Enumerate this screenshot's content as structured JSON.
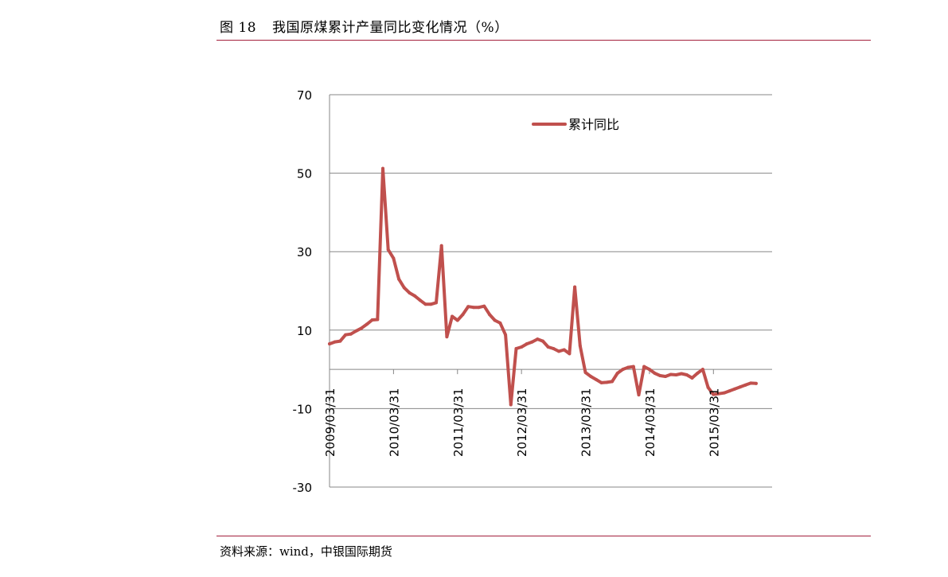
{
  "figure": {
    "label": "图 18",
    "title": "我国原煤累计产量同比变化情况（%）",
    "source": "资料来源：wind，中银国际期货"
  },
  "colors": {
    "accent_rule": "#a31f3c",
    "series_line": "#c0504d",
    "grid": "#878787"
  },
  "chart_data": {
    "type": "line",
    "title": "",
    "xlabel": "",
    "ylabel": "",
    "ylim": [
      -30,
      70
    ],
    "yticks": [
      70,
      50,
      30,
      10,
      -10,
      -30
    ],
    "grid": true,
    "legend_position": "top-right",
    "x_tick_labels": [
      "2009/03/31",
      "2010/03/31",
      "2011/03/31",
      "2012/03/31",
      "2013/03/31",
      "2014/03/31",
      "2015/03/31"
    ],
    "x_start": "2009-03",
    "x_end": "2016-02",
    "series": [
      {
        "name": "累计同比",
        "points": [
          [
            "2009-03",
            6.5
          ],
          [
            "2009-04",
            7.0
          ],
          [
            "2009-05",
            7.2
          ],
          [
            "2009-06",
            8.8
          ],
          [
            "2009-07",
            9.0
          ],
          [
            "2009-08",
            9.8
          ],
          [
            "2009-09",
            10.5
          ],
          [
            "2009-10",
            11.5
          ],
          [
            "2009-11",
            12.6
          ],
          [
            "2009-12",
            12.7
          ],
          [
            "2010-01",
            51.2
          ],
          [
            "2010-02",
            30.5
          ],
          [
            "2010-03",
            28.3
          ],
          [
            "2010-04",
            23.0
          ],
          [
            "2010-05",
            20.8
          ],
          [
            "2010-06",
            19.5
          ],
          [
            "2010-07",
            18.7
          ],
          [
            "2010-08",
            17.6
          ],
          [
            "2010-09",
            16.6
          ],
          [
            "2010-10",
            16.6
          ],
          [
            "2010-11",
            17.0
          ],
          [
            "2010-12",
            31.5
          ],
          [
            "2011-01",
            8.3
          ],
          [
            "2011-02",
            13.5
          ],
          [
            "2011-03",
            12.5
          ],
          [
            "2011-04",
            14.0
          ],
          [
            "2011-05",
            16.0
          ],
          [
            "2011-06",
            15.8
          ],
          [
            "2011-07",
            15.8
          ],
          [
            "2011-08",
            16.1
          ],
          [
            "2011-09",
            14.0
          ],
          [
            "2011-10",
            12.5
          ],
          [
            "2011-11",
            11.8
          ],
          [
            "2011-12",
            8.8
          ],
          [
            "2012-01",
            -9.0
          ],
          [
            "2012-02",
            5.3
          ],
          [
            "2012-03",
            5.7
          ],
          [
            "2012-04",
            6.5
          ],
          [
            "2012-05",
            7.0
          ],
          [
            "2012-06",
            7.7
          ],
          [
            "2012-07",
            7.2
          ],
          [
            "2012-08",
            5.7
          ],
          [
            "2012-09",
            5.3
          ],
          [
            "2012-10",
            4.6
          ],
          [
            "2012-11",
            5.0
          ],
          [
            "2012-12",
            4.0
          ],
          [
            "2013-01",
            21.0
          ],
          [
            "2013-02",
            6.0
          ],
          [
            "2013-03",
            -0.8
          ],
          [
            "2013-04",
            -1.8
          ],
          [
            "2013-05",
            -2.6
          ],
          [
            "2013-06",
            -3.4
          ],
          [
            "2013-07",
            -3.3
          ],
          [
            "2013-08",
            -3.1
          ],
          [
            "2013-09",
            -1.0
          ],
          [
            "2013-10",
            0.0
          ],
          [
            "2013-11",
            0.5
          ],
          [
            "2013-12",
            0.7
          ],
          [
            "2014-01",
            -6.5
          ],
          [
            "2014-02",
            0.7
          ],
          [
            "2014-03",
            0.0
          ],
          [
            "2014-04",
            -1.0
          ],
          [
            "2014-05",
            -1.6
          ],
          [
            "2014-06",
            -1.8
          ],
          [
            "2014-07",
            -1.3
          ],
          [
            "2014-08",
            -1.4
          ],
          [
            "2014-09",
            -1.1
          ],
          [
            "2014-10",
            -1.4
          ],
          [
            "2014-11",
            -2.2
          ],
          [
            "2014-12",
            -1.0
          ],
          [
            "2015-01",
            0.0
          ],
          [
            "2015-02",
            -4.6
          ],
          [
            "2015-03",
            -6.4
          ],
          [
            "2015-04",
            -6.2
          ],
          [
            "2015-05",
            -6.0
          ],
          [
            "2015-06",
            -5.5
          ],
          [
            "2015-07",
            -5.0
          ],
          [
            "2015-08",
            -4.5
          ],
          [
            "2015-09",
            -4.0
          ],
          [
            "2015-10",
            -3.5
          ],
          [
            "2015-11",
            -3.6
          ]
        ]
      }
    ]
  }
}
